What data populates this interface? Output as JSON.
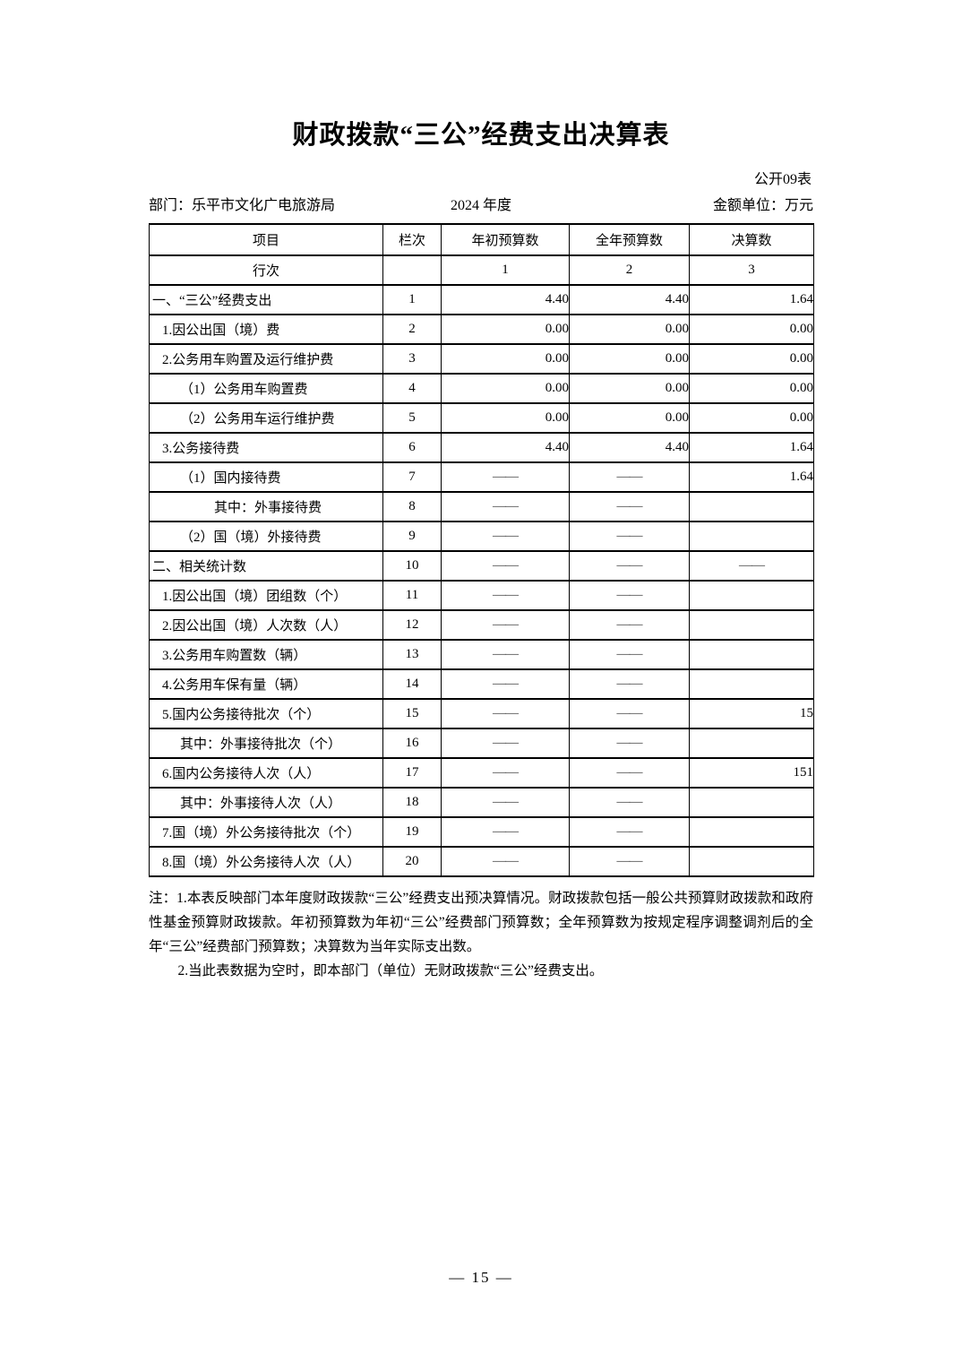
{
  "header": {
    "title": "财政拨款“三公”经费支出决算表",
    "table_code": "公开09表",
    "department": "部门：乐平市文化广电旅游局",
    "year": "2024 年度",
    "unit": "金额单位：万元"
  },
  "table": {
    "columns": [
      "项目",
      "栏次",
      "年初预算数",
      "全年预算数",
      "决算数"
    ],
    "subheader": [
      "行次",
      "",
      "1",
      "2",
      "3"
    ],
    "rows": [
      {
        "item": "一、“三公”经费支出",
        "indent": 0,
        "line": "1",
        "values": [
          "4.40",
          "4.40",
          "1.64"
        ]
      },
      {
        "item": "1.因公出国（境）费",
        "indent": 1,
        "line": "2",
        "values": [
          "0.00",
          "0.00",
          "0.00"
        ]
      },
      {
        "item": "2.公务用车购置及运行维护费",
        "indent": 1,
        "line": "3",
        "values": [
          "0.00",
          "0.00",
          "0.00"
        ]
      },
      {
        "item": "（1）公务用车购置费",
        "indent": 2,
        "line": "4",
        "values": [
          "0.00",
          "0.00",
          "0.00"
        ]
      },
      {
        "item": "（2）公务用车运行维护费",
        "indent": 2,
        "line": "5",
        "values": [
          "0.00",
          "0.00",
          "0.00"
        ]
      },
      {
        "item": "3.公务接待费",
        "indent": 1,
        "line": "6",
        "values": [
          "4.40",
          "4.40",
          "1.64"
        ]
      },
      {
        "item": "（1）国内接待费",
        "indent": 2,
        "line": "7",
        "values": [
          "——",
          "——",
          "1.64"
        ]
      },
      {
        "item": "其中：外事接待费",
        "indent": 3,
        "line": "8",
        "values": [
          "——",
          "——",
          ""
        ]
      },
      {
        "item": "（2）国（境）外接待费",
        "indent": 2,
        "line": "9",
        "values": [
          "——",
          "——",
          ""
        ]
      },
      {
        "item": "二、相关统计数",
        "indent": 0,
        "line": "10",
        "values": [
          "——",
          "——",
          "——"
        ]
      },
      {
        "item": "1.因公出国（境）团组数（个）",
        "indent": 1,
        "line": "11",
        "values": [
          "——",
          "——",
          ""
        ]
      },
      {
        "item": "2.因公出国（境）人次数（人）",
        "indent": 1,
        "line": "12",
        "values": [
          "——",
          "——",
          ""
        ]
      },
      {
        "item": "3.公务用车购置数（辆）",
        "indent": 1,
        "line": "13",
        "values": [
          "——",
          "——",
          ""
        ]
      },
      {
        "item": "4.公务用车保有量（辆）",
        "indent": 1,
        "line": "14",
        "values": [
          "——",
          "——",
          ""
        ]
      },
      {
        "item": "5.国内公务接待批次（个）",
        "indent": 1,
        "line": "15",
        "values": [
          "——",
          "——",
          "15"
        ]
      },
      {
        "item": "其中：外事接待批次（个）",
        "indent": 2,
        "line": "16",
        "values": [
          "——",
          "——",
          ""
        ]
      },
      {
        "item": "6.国内公务接待人次（人）",
        "indent": 1,
        "line": "17",
        "values": [
          "——",
          "——",
          "151"
        ]
      },
      {
        "item": "其中：外事接待人次（人）",
        "indent": 2,
        "line": "18",
        "values": [
          "——",
          "——",
          ""
        ]
      },
      {
        "item": "7.国（境）外公务接待批次（个）",
        "indent": 1,
        "line": "19",
        "values": [
          "——",
          "——",
          ""
        ]
      },
      {
        "item": "8.国（境）外公务接待人次（人）",
        "indent": 1,
        "line": "20",
        "values": [
          "——",
          "——",
          ""
        ]
      }
    ]
  },
  "notes": [
    "注：1.本表反映部门本年度财政拨款“三公”经费支出预决算情况。财政拨款包括一般公共预算财政拨款和政府性基金预算财政拨款。年初预算数为年初“三公”经费部门预算数；全年预算数为按规定程序调整调剂后的全年“三公”经费部门预算数；决算数为当年实际支出数。",
    "2.当此表数据为空时，即本部门（单位）无财政拨款“三公”经费支出。"
  ],
  "footer": {
    "page_number": "— 15 —"
  }
}
